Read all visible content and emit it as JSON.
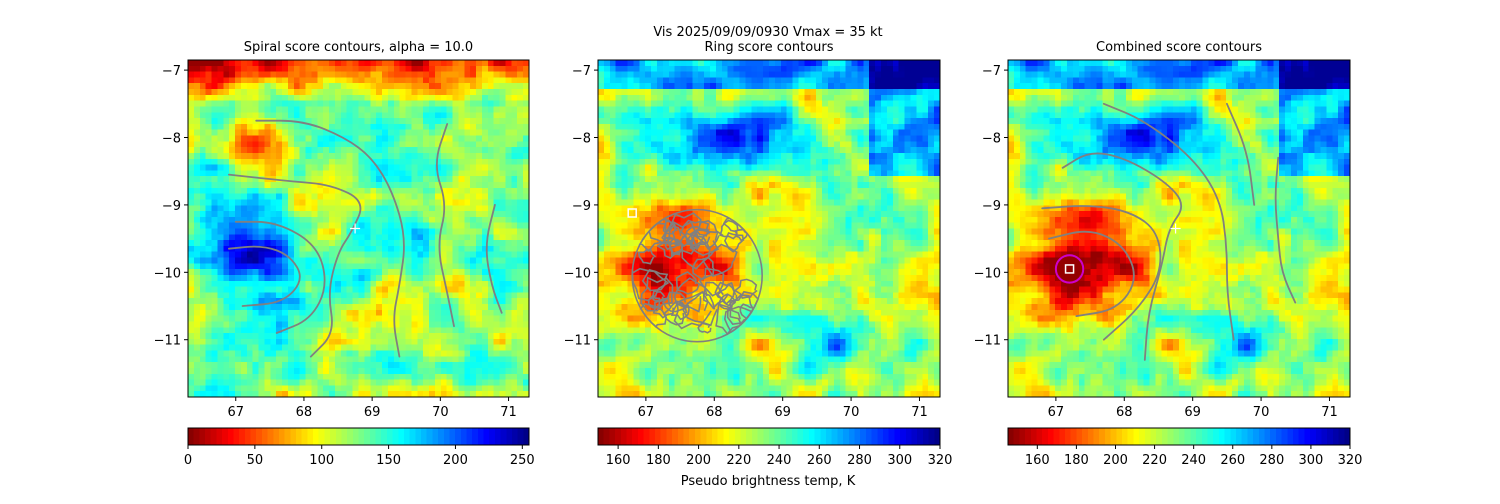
{
  "suptitle": "Vis  2025/09/09/0930    Vmax = 35 kt",
  "colorbar_label": "Pseudo brightness temp, K",
  "colors": {
    "contour": "#808080",
    "marker": "#ffffff",
    "circle": "#cc00cc"
  },
  "chart_data": [
    {
      "type": "heatmap",
      "title": "Spiral score contours, alpha = 10.0",
      "xlim": [
        66.3,
        71.3
      ],
      "ylim": [
        -11.85,
        -6.85
      ],
      "xticks": [
        "67",
        "68",
        "69",
        "70",
        "71"
      ],
      "yticks": [
        "-7",
        "-8",
        "-9",
        "-10",
        "-11"
      ],
      "colormap": "jet_r",
      "colorbar": {
        "range": [
          0,
          255
        ],
        "ticks": [
          "0",
          "50",
          "100",
          "150",
          "200",
          "250"
        ]
      },
      "markers": [
        {
          "shape": "plus",
          "x": 68.75,
          "y": -9.35
        }
      ],
      "contours": [
        [
          [
            67.1,
            -10.5
          ],
          [
            67.7,
            -10.45
          ],
          [
            68.0,
            -10.1
          ],
          [
            67.8,
            -9.75
          ],
          [
            67.4,
            -9.6
          ],
          [
            66.9,
            -9.65
          ]
        ],
        [
          [
            67.0,
            -9.25
          ],
          [
            67.6,
            -9.25
          ],
          [
            68.2,
            -9.6
          ],
          [
            68.35,
            -10.2
          ],
          [
            68.1,
            -10.7
          ],
          [
            67.6,
            -10.9
          ]
        ],
        [
          [
            66.9,
            -8.55
          ],
          [
            67.8,
            -8.65
          ],
          [
            68.4,
            -8.7
          ],
          [
            68.9,
            -8.95
          ],
          [
            68.7,
            -9.4
          ],
          [
            68.5,
            -9.7
          ],
          [
            68.35,
            -10.3
          ],
          [
            68.45,
            -10.9
          ],
          [
            68.1,
            -11.25
          ]
        ],
        [
          [
            67.3,
            -7.75
          ],
          [
            68.0,
            -7.75
          ],
          [
            68.6,
            -8.0
          ],
          [
            69.0,
            -8.3
          ],
          [
            69.3,
            -8.8
          ],
          [
            69.5,
            -9.5
          ],
          [
            69.4,
            -10.2
          ],
          [
            69.3,
            -10.7
          ],
          [
            69.4,
            -11.25
          ]
        ],
        [
          [
            70.1,
            -7.8
          ],
          [
            69.9,
            -8.4
          ],
          [
            70.1,
            -9.0
          ],
          [
            69.95,
            -9.6
          ],
          [
            70.1,
            -10.3
          ],
          [
            70.2,
            -10.8
          ]
        ],
        [
          [
            70.8,
            -9.0
          ],
          [
            70.65,
            -9.6
          ],
          [
            70.75,
            -10.2
          ],
          [
            70.9,
            -10.6
          ]
        ]
      ]
    },
    {
      "type": "heatmap",
      "title": "Ring score contours",
      "xlim": [
        66.3,
        71.3
      ],
      "ylim": [
        -11.85,
        -6.85
      ],
      "xticks": [
        "67",
        "68",
        "69",
        "70",
        "71"
      ],
      "yticks": [
        "-7",
        "-8",
        "-9",
        "-10",
        "-11"
      ],
      "colormap": "jet_r",
      "colorbar": {
        "range": [
          150,
          320
        ],
        "ticks": [
          "160",
          "180",
          "200",
          "220",
          "240",
          "260",
          "280",
          "300",
          "320"
        ]
      },
      "markers": [
        {
          "shape": "square",
          "x": 66.8,
          "y": -9.12
        }
      ],
      "ring_region": {
        "cx": 67.75,
        "cy": -10.05,
        "rx": 0.95,
        "ry": 0.98
      }
    },
    {
      "type": "heatmap",
      "title": "Combined score contours",
      "xlim": [
        66.3,
        71.3
      ],
      "ylim": [
        -11.85,
        -6.85
      ],
      "xticks": [
        "67",
        "68",
        "69",
        "70",
        "71"
      ],
      "yticks": [
        "-7",
        "-8",
        "-9",
        "-10",
        "-11"
      ],
      "colormap": "jet_r",
      "colorbar": {
        "range": [
          145,
          320
        ],
        "ticks": [
          "160",
          "180",
          "200",
          "220",
          "240",
          "260",
          "280",
          "300",
          "320"
        ]
      },
      "markers": [
        {
          "shape": "plus",
          "x": 68.75,
          "y": -9.35
        },
        {
          "shape": "square",
          "x": 67.2,
          "y": -9.95
        },
        {
          "shape": "circle",
          "x": 67.2,
          "y": -9.95,
          "r": 0.2
        }
      ],
      "contours": [
        [
          [
            67.3,
            -10.65
          ],
          [
            67.9,
            -10.55
          ],
          [
            68.2,
            -10.1
          ],
          [
            68.0,
            -9.6
          ],
          [
            67.5,
            -9.35
          ],
          [
            66.9,
            -9.5
          ]
        ],
        [
          [
            66.8,
            -9.05
          ],
          [
            67.5,
            -9.0
          ],
          [
            68.1,
            -9.1
          ],
          [
            68.5,
            -9.4
          ],
          [
            68.55,
            -10.0
          ],
          [
            68.2,
            -10.55
          ],
          [
            67.7,
            -11.0
          ]
        ],
        [
          [
            67.1,
            -8.45
          ],
          [
            67.5,
            -8.2
          ],
          [
            68.0,
            -8.3
          ],
          [
            68.6,
            -8.65
          ],
          [
            68.9,
            -9.0
          ],
          [
            68.65,
            -9.35
          ],
          [
            68.55,
            -9.9
          ],
          [
            68.35,
            -10.6
          ],
          [
            68.3,
            -11.3
          ]
        ],
        [
          [
            67.7,
            -7.5
          ],
          [
            68.3,
            -7.75
          ],
          [
            69.0,
            -8.3
          ],
          [
            69.4,
            -8.9
          ],
          [
            69.5,
            -9.6
          ],
          [
            69.5,
            -10.3
          ],
          [
            69.6,
            -11.0
          ]
        ],
        [
          [
            70.25,
            -8.3
          ],
          [
            70.2,
            -8.9
          ],
          [
            70.25,
            -9.5
          ],
          [
            70.3,
            -10.0
          ],
          [
            70.5,
            -10.45
          ]
        ],
        [
          [
            69.5,
            -7.5
          ],
          [
            69.8,
            -8.2
          ],
          [
            69.9,
            -9.0
          ]
        ]
      ]
    }
  ]
}
